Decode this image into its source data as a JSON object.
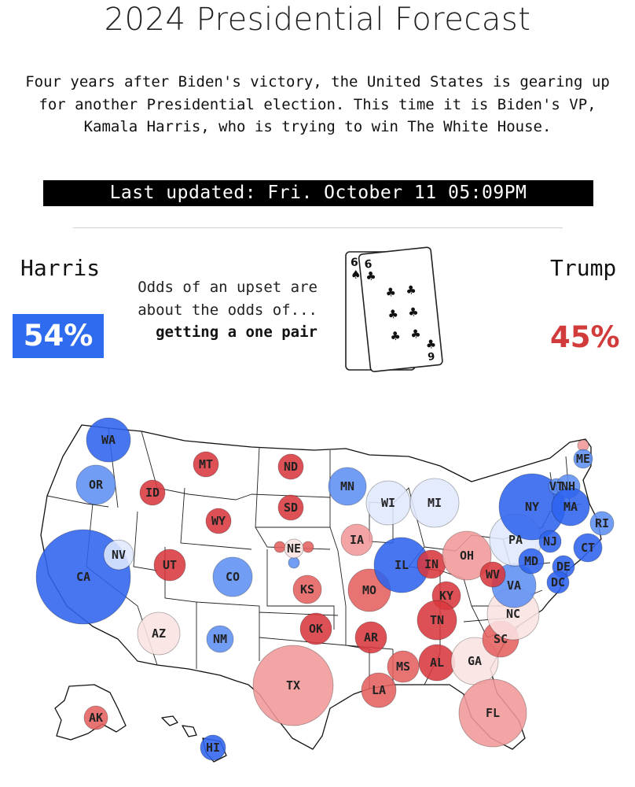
{
  "header": {
    "title": "2024 Presidential Forecast",
    "intro": "Four years after Biden's victory, the United States is gearing up for another Presidential election. This time it is Biden's VP, Kamala Harris, who is trying to win The White House.",
    "updated": "Last updated: Fri. October 11 05:09PM"
  },
  "forecast": {
    "harris_label": "Harris",
    "harris_pct": "54%",
    "trump_label": "Trump",
    "trump_pct": "45%",
    "odds_line1": "Odds of an upset are",
    "odds_line2": "about the odds of...",
    "odds_line3": "getting a one pair",
    "card_back_rank": "6",
    "card_back_suit": "♠",
    "card_front_rank": "6",
    "card_front_suit": "♣",
    "card_front_corner": "9"
  },
  "colors": {
    "harris_blue": "#2f6bef",
    "trump_red": "#d13b3b"
  },
  "map": {
    "states": [
      "WA",
      "OR",
      "CA",
      "NV",
      "ID",
      "MT",
      "WY",
      "UT",
      "AZ",
      "CO",
      "NM",
      "ND",
      "SD",
      "NE",
      "KS",
      "OK",
      "TX",
      "MN",
      "IA",
      "MO",
      "AR",
      "LA",
      "WI",
      "IL",
      "MI",
      "IN",
      "OH",
      "KY",
      "TN",
      "MS",
      "AL",
      "GA",
      "FL",
      "SC",
      "NC",
      "VA",
      "WV",
      "PA",
      "NY",
      "VT",
      "NH",
      "ME",
      "MA",
      "RI",
      "CT",
      "NJ",
      "DE",
      "MD",
      "DC",
      "AK",
      "HI"
    ]
  }
}
